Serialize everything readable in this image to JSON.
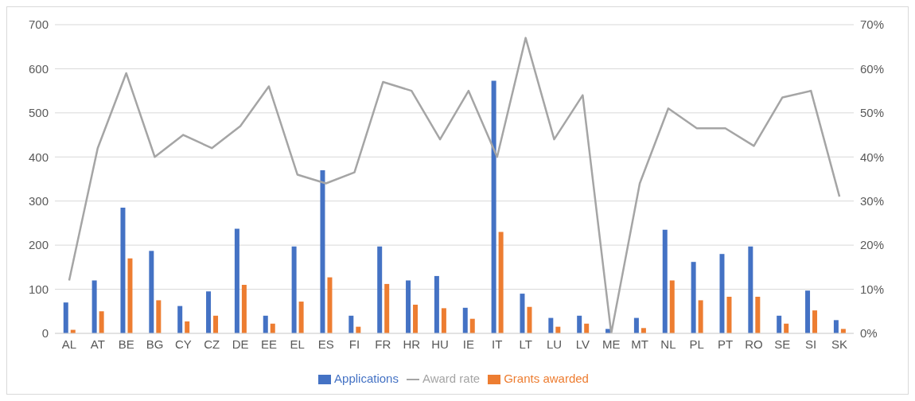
{
  "chart_data": {
    "type": "bar",
    "categories": [
      "AL",
      "AT",
      "BE",
      "BG",
      "CY",
      "CZ",
      "DE",
      "EE",
      "EL",
      "ES",
      "FI",
      "FR",
      "HR",
      "HU",
      "IE",
      "IT",
      "LT",
      "LU",
      "LV",
      "ME",
      "MT",
      "NL",
      "PL",
      "PT",
      "RO",
      "SE",
      "SI",
      "SK"
    ],
    "series": [
      {
        "name": "Applications",
        "color": "#4472c4",
        "values": [
          70,
          120,
          285,
          187,
          62,
          95,
          237,
          40,
          197,
          370,
          40,
          197,
          120,
          130,
          58,
          573,
          90,
          35,
          40,
          10,
          35,
          235,
          162,
          180,
          197,
          40,
          97,
          30
        ]
      },
      {
        "name": "Grants awarded",
        "color": "#ed7d31",
        "values": [
          8,
          50,
          170,
          75,
          27,
          40,
          110,
          22,
          72,
          127,
          15,
          112,
          65,
          57,
          33,
          230,
          60,
          15,
          22,
          0,
          12,
          120,
          75,
          83,
          83,
          22,
          52,
          10
        ]
      },
      {
        "name": "Award rate",
        "type": "line",
        "axis": "y2",
        "color": "#a5a5a5",
        "values": [
          12,
          42,
          59,
          40,
          45,
          42,
          47,
          56,
          36,
          34,
          36.5,
          57,
          55,
          44,
          55,
          40,
          67,
          44,
          54,
          0,
          34,
          51,
          46.5,
          46.5,
          42.5,
          53.5,
          55,
          31
        ]
      }
    ],
    "ylim": [
      0,
      700
    ],
    "yticks": [
      0,
      100,
      200,
      300,
      400,
      500,
      600,
      700
    ],
    "y2lim": [
      0,
      70
    ],
    "y2ticks": [
      {
        "value": 0,
        "label": "0%"
      },
      {
        "value": 10,
        "label": "10%"
      },
      {
        "value": 20,
        "label": "20%"
      },
      {
        "value": 30,
        "label": "30%"
      },
      {
        "value": 40,
        "label": "40%"
      },
      {
        "value": 50,
        "label": "50%"
      },
      {
        "value": 60,
        "label": "60%"
      },
      {
        "value": 70,
        "label": "70%"
      }
    ],
    "grid": "y",
    "legend": "bottom",
    "marker": "none"
  }
}
